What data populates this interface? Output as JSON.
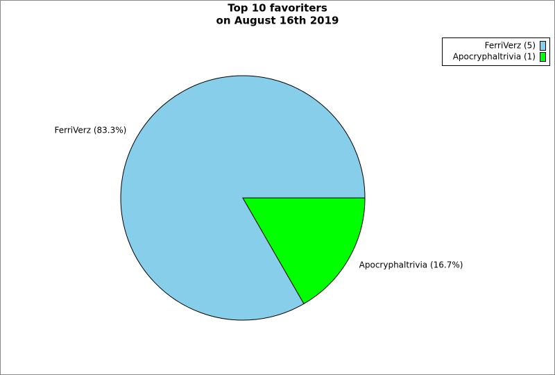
{
  "chart_data": {
    "type": "pie",
    "title": [
      "Top 10 favoriters",
      "on August 16th 2019"
    ],
    "categories": [
      "FerriVerz (5)",
      "Apocryphaltrivia (1)"
    ],
    "values": [
      5,
      1
    ],
    "value_labels": [
      "FerriVerz (83.3%)",
      "Apocryphaltrivia (16.7%)"
    ],
    "colors": [
      "#87ceeb",
      "#00ff00"
    ],
    "legend": "upper right"
  }
}
